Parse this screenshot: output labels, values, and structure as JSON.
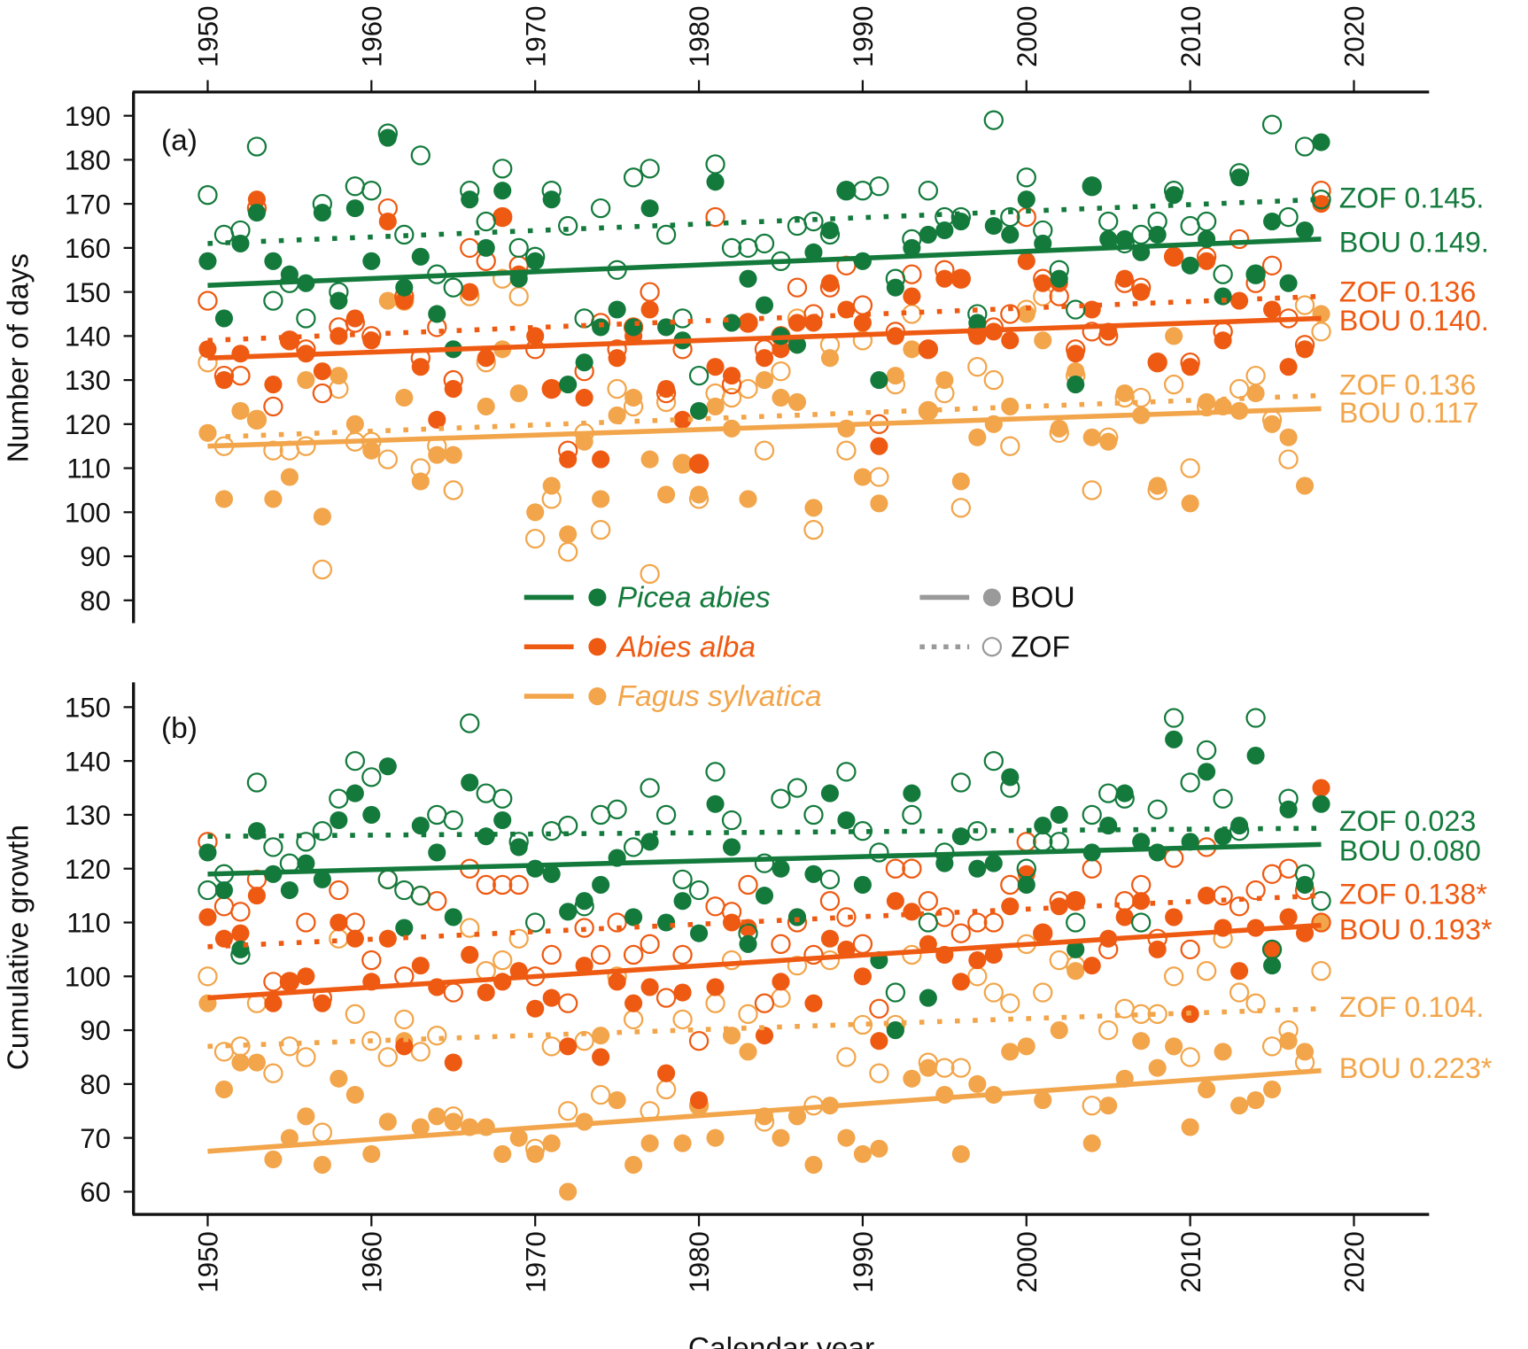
{
  "chart_data": [
    {
      "type": "scatter",
      "panel_label": "(a)",
      "ylabel": "Number of days",
      "xlabel": "Calendar year",
      "xlim": [
        1950,
        2020
      ],
      "ylim": [
        80,
        190
      ],
      "x_ticks": [
        1950,
        1960,
        1970,
        1980,
        1990,
        2000,
        2010,
        2020
      ],
      "y_ticks": [
        80,
        90,
        100,
        110,
        120,
        130,
        140,
        150,
        160,
        170,
        180,
        190
      ],
      "x_axis_position": "top",
      "x_start": 1950,
      "series": [
        {
          "name": "Picea abies ZOF",
          "species": "picea",
          "site": "ZOF",
          "label": "ZOF 0.145.",
          "trend": [
            161,
            171
          ],
          "values": [
            172,
            163,
            164,
            183,
            148,
            152,
            144,
            170,
            150,
            174,
            173,
            186,
            163,
            181,
            154,
            151,
            173,
            166,
            178,
            160,
            158,
            173,
            165,
            144,
            169,
            155,
            176,
            178,
            163,
            144,
            131,
            179,
            160,
            160,
            161,
            157,
            165,
            166,
            163,
            173,
            173,
            174,
            153,
            162,
            173,
            167,
            167,
            145,
            189,
            167,
            176,
            164,
            155,
            146,
            174,
            166,
            161,
            163,
            166,
            173,
            165,
            166,
            154,
            177,
            154,
            188,
            167,
            183,
            171
          ]
        },
        {
          "name": "Picea abies BOU",
          "species": "picea",
          "site": "BOU",
          "label": "BOU 0.149.",
          "trend": [
            151.5,
            162
          ],
          "values": [
            157,
            144,
            161,
            168,
            157,
            154,
            152,
            168,
            148,
            169,
            157,
            185,
            151,
            158,
            145,
            137,
            171,
            160,
            173,
            153,
            157,
            171,
            129,
            134,
            142,
            146,
            142,
            169,
            142,
            139,
            123,
            175,
            143,
            153,
            147,
            140,
            138,
            159,
            164,
            173,
            157,
            130,
            151,
            160,
            163,
            164,
            166,
            143,
            165,
            163,
            171,
            161,
            153,
            129,
            174,
            162,
            162,
            159,
            163,
            172,
            156,
            162,
            149,
            176,
            154,
            166,
            152,
            164,
            184
          ]
        },
        {
          "name": "Abies alba ZOF",
          "species": "abies",
          "site": "ZOF",
          "label": "ZOF 0.136",
          "trend": [
            139,
            149
          ],
          "values": [
            148,
            131,
            131,
            169,
            124,
            139,
            137,
            127,
            142,
            143,
            140,
            169,
            149,
            135,
            142,
            130,
            160,
            157,
            167,
            156,
            137,
            128,
            114,
            132,
            143,
            137,
            142,
            150,
            127,
            137,
            111,
            167,
            129,
            143,
            137,
            140,
            151,
            145,
            151,
            156,
            147,
            120,
            141,
            154,
            137,
            155,
            153,
            141,
            142,
            145,
            167,
            153,
            149,
            137,
            141,
            140,
            152,
            151,
            134,
            158,
            134,
            158,
            141,
            162,
            152,
            156,
            144,
            138,
            173
          ]
        },
        {
          "name": "Abies alba BOU",
          "species": "abies",
          "site": "BOU",
          "label": "BOU 0.140.",
          "trend": [
            135,
            144
          ],
          "values": [
            137,
            130,
            136,
            171,
            129,
            139,
            136,
            132,
            140,
            144,
            139,
            166,
            148,
            133,
            121,
            128,
            150,
            135,
            167,
            154,
            140,
            128,
            112,
            126,
            112,
            135,
            140,
            146,
            128,
            121,
            111,
            133,
            131,
            143,
            135,
            137,
            143,
            143,
            152,
            146,
            143,
            115,
            140,
            149,
            137,
            153,
            153,
            140,
            141,
            139,
            157,
            152,
            152,
            136,
            146,
            141,
            153,
            150,
            134,
            158,
            133,
            157,
            139,
            148,
            154,
            146,
            133,
            137,
            170
          ]
        },
        {
          "name": "Fagus sylvatica ZOF",
          "species": "fagus",
          "site": "ZOF",
          "label": "ZOF 0.136",
          "trend": [
            117,
            126.5
          ],
          "values": [
            134,
            115,
            131,
            121,
            114,
            114,
            115,
            87,
            128,
            116,
            116,
            112,
            148,
            110,
            115,
            105,
            149,
            134,
            153,
            149,
            94,
            103,
            91,
            118,
            96,
            128,
            124,
            86,
            125,
            111,
            103,
            127,
            126,
            128,
            114,
            132,
            144,
            96,
            138,
            114,
            139,
            108,
            129,
            145,
            123,
            127,
            101,
            133,
            130,
            115,
            146,
            149,
            118,
            131,
            105,
            117,
            126,
            126,
            105,
            129,
            110,
            124,
            141,
            128,
            131,
            121,
            112,
            147,
            141
          ]
        },
        {
          "name": "Fagus sylvatica BOU",
          "species": "fagus",
          "site": "BOU",
          "label": "BOU 0.117",
          "trend": [
            115,
            123.5
          ],
          "values": [
            118,
            103,
            123,
            121,
            103,
            108,
            130,
            99,
            131,
            120,
            114,
            148,
            126,
            107,
            113,
            113,
            150,
            124,
            137,
            127,
            100,
            106,
            95,
            116,
            103,
            122,
            126,
            112,
            104,
            111,
            104,
            124,
            119,
            103,
            130,
            126,
            125,
            101,
            135,
            119,
            108,
            102,
            131,
            137,
            123,
            130,
            107,
            117,
            120,
            124,
            145,
            139,
            119,
            132,
            117,
            116,
            127,
            122,
            106,
            140,
            102,
            125,
            124,
            123,
            127,
            120,
            117,
            106,
            145
          ]
        }
      ]
    },
    {
      "type": "scatter",
      "panel_label": "(b)",
      "ylabel": "Cumulative growth",
      "xlabel": "Calendar year",
      "xlim": [
        1950,
        2020
      ],
      "ylim": [
        60,
        150
      ],
      "x_ticks": [
        1950,
        1960,
        1970,
        1980,
        1990,
        2000,
        2010,
        2020
      ],
      "y_ticks": [
        60,
        70,
        80,
        90,
        100,
        110,
        120,
        130,
        140,
        150
      ],
      "x_axis_position": "bottom",
      "x_start": 1950,
      "series": [
        {
          "name": "Picea abies ZOF",
          "species": "picea",
          "site": "ZOF",
          "label": "ZOF 0.023",
          "trend": [
            126,
            127.5
          ],
          "values": [
            116,
            119,
            104,
            136,
            124,
            121,
            125,
            127,
            133,
            140,
            137,
            118,
            116,
            115,
            130,
            129,
            147,
            134,
            133,
            125,
            110,
            127,
            128,
            113,
            130,
            131,
            124,
            135,
            130,
            118,
            116,
            138,
            129,
            108,
            121,
            133,
            135,
            130,
            118,
            138,
            127,
            123,
            97,
            130,
            110,
            123,
            136,
            127,
            140,
            135,
            120,
            125,
            125,
            110,
            130,
            134,
            133,
            110,
            131,
            148,
            136,
            142,
            133,
            127,
            148,
            105,
            133,
            119,
            114
          ]
        },
        {
          "name": "Picea abies BOU",
          "species": "picea",
          "site": "BOU",
          "label": "BOU 0.080",
          "trend": [
            119,
            124.5
          ],
          "values": [
            123,
            116,
            105,
            127,
            119,
            116,
            121,
            118,
            129,
            134,
            130,
            139,
            109,
            128,
            123,
            111,
            136,
            126,
            129,
            124,
            120,
            119,
            112,
            114,
            117,
            122,
            111,
            125,
            110,
            114,
            108,
            132,
            124,
            106,
            115,
            120,
            111,
            119,
            134,
            129,
            117,
            103,
            90,
            134,
            96,
            121,
            126,
            120,
            121,
            137,
            117,
            128,
            130,
            105,
            123,
            128,
            134,
            125,
            123,
            144,
            125,
            138,
            126,
            128,
            141,
            102,
            131,
            117,
            132
          ]
        },
        {
          "name": "Abies alba ZOF",
          "species": "abies",
          "site": "ZOF",
          "label": "ZOF 0.138*",
          "trend": [
            105.5,
            115
          ],
          "values": [
            125,
            113,
            112,
            118,
            99,
            99,
            110,
            96,
            116,
            110,
            103,
            118,
            100,
            115,
            114,
            97,
            120,
            117,
            117,
            117,
            100,
            104,
            95,
            109,
            104,
            110,
            104,
            106,
            96,
            104,
            88,
            113,
            112,
            117,
            95,
            106,
            110,
            104,
            114,
            111,
            106,
            94,
            120,
            120,
            114,
            111,
            108,
            110,
            110,
            117,
            125,
            108,
            114,
            114,
            120,
            105,
            114,
            117,
            107,
            122,
            105,
            124,
            115,
            113,
            116,
            119,
            120,
            116,
            110
          ]
        },
        {
          "name": "Abies alba BOU",
          "species": "abies",
          "site": "BOU",
          "label": "BOU 0.193*",
          "trend": [
            96,
            109.5
          ],
          "values": [
            111,
            107,
            108,
            115,
            95,
            99,
            100,
            95,
            110,
            107,
            99,
            107,
            87,
            102,
            98,
            84,
            104,
            97,
            99,
            101,
            94,
            96,
            87,
            102,
            85,
            99,
            95,
            98,
            82,
            97,
            77,
            98,
            110,
            109,
            89,
            99,
            111,
            95,
            107,
            105,
            100,
            88,
            114,
            112,
            106,
            104,
            99,
            103,
            104,
            113,
            119,
            108,
            113,
            114,
            102,
            107,
            111,
            114,
            105,
            111,
            93,
            115,
            109,
            101,
            109,
            105,
            111,
            108,
            135
          ]
        },
        {
          "name": "Fagus sylvatica ZOF",
          "species": "fagus",
          "site": "ZOF",
          "label": "ZOF 0.104.",
          "trend": [
            87,
            94
          ],
          "values": [
            100,
            86,
            87,
            95,
            82,
            87,
            85,
            71,
            107,
            93,
            88,
            85,
            92,
            86,
            89,
            74,
            109,
            101,
            103,
            107,
            68,
            87,
            75,
            88,
            78,
            100,
            92,
            75,
            79,
            92,
            76,
            95,
            103,
            93,
            73,
            96,
            102,
            76,
            103,
            85,
            91,
            82,
            91,
            104,
            84,
            83,
            83,
            100,
            97,
            95,
            106,
            97,
            103,
            102,
            76,
            90,
            94,
            93,
            93,
            100,
            85,
            101,
            107,
            97,
            95,
            87,
            90,
            84,
            101
          ]
        },
        {
          "name": "Fagus sylvatica BOU",
          "species": "fagus",
          "site": "BOU",
          "label": "BOU 0.223*",
          "trend": [
            67.5,
            82.5
          ],
          "values": [
            95,
            79,
            84,
            84,
            66,
            70,
            74,
            65,
            81,
            78,
            67,
            73,
            88,
            72,
            74,
            73,
            72,
            72,
            67,
            70,
            67,
            69,
            60,
            73,
            89,
            77,
            65,
            69,
            82,
            69,
            76,
            70,
            89,
            86,
            74,
            70,
            74,
            65,
            76,
            70,
            67,
            68,
            90,
            81,
            83,
            78,
            67,
            80,
            78,
            86,
            87,
            77,
            90,
            101,
            69,
            76,
            81,
            88,
            83,
            87,
            72,
            79,
            86,
            76,
            77,
            79,
            88,
            86,
            110
          ]
        }
      ]
    }
  ],
  "colors": {
    "picea": "#137a3c",
    "abies": "#ee5a12",
    "fagus": "#f2a54a",
    "site_legend": "#9a9a9a"
  },
  "legend": {
    "species": [
      {
        "key": "picea",
        "label": "Picea abies"
      },
      {
        "key": "abies",
        "label": "Abies alba"
      },
      {
        "key": "fagus",
        "label": "Fagus sylvatica"
      }
    ],
    "sites": [
      {
        "key": "BOU",
        "label": "BOU",
        "style": "solid line, filled circle"
      },
      {
        "key": "ZOF",
        "label": "ZOF",
        "style": "dotted line, open circle"
      }
    ]
  }
}
